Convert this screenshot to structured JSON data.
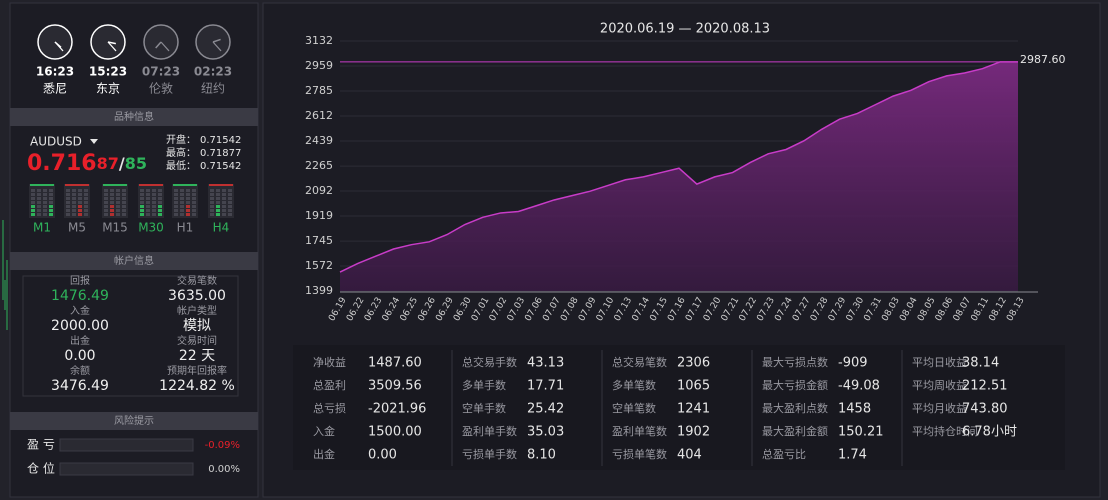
{
  "left": {
    "clocks": [
      {
        "time": "16:23",
        "city": "悉尼",
        "color": "#ffffff"
      },
      {
        "time": "15:23",
        "city": "东京",
        "color": "#ffffff"
      },
      {
        "time": "07:23",
        "city": "伦敦",
        "color": "#8a8a92"
      },
      {
        "time": "02:23",
        "city": "纽约",
        "color": "#8a8a92"
      }
    ],
    "symbol_section": "品种信息",
    "symbol": "AUDUSD",
    "price": {
      "main": "0.716",
      "pips": "87",
      "sep": "/",
      "ask": "85"
    },
    "quotes": [
      {
        "label": "开盘：",
        "value": "0.71542"
      },
      {
        "label": "最高：",
        "value": "0.71877"
      },
      {
        "label": "最低：",
        "value": "0.71542"
      }
    ],
    "timeframes": [
      {
        "label": "M1",
        "color": "#2fb35b"
      },
      {
        "label": "M5",
        "color": "#8a8a92"
      },
      {
        "label": "M15",
        "color": "#8a8a92"
      },
      {
        "label": "M30",
        "color": "#2fb35b"
      },
      {
        "label": "H1",
        "color": "#8a8a92"
      },
      {
        "label": "H4",
        "color": "#2fb35b"
      }
    ],
    "account_section": "帐户信息",
    "account": [
      [
        {
          "label": "回报",
          "value": "1476.49"
        },
        {
          "label": "入金",
          "value": "2000.00"
        },
        {
          "label": "出金",
          "value": "0.00"
        },
        {
          "label": "余额",
          "value": "3476.49"
        }
      ],
      [
        {
          "label": "交易笔数",
          "value": "3635.00"
        },
        {
          "label": "帐户类型",
          "value": "模拟"
        },
        {
          "label": "交易时间",
          "value": "22 天"
        },
        {
          "label": "预期年回报率",
          "value": "1224.82 %"
        }
      ]
    ],
    "risk_section": "风险提示",
    "risk": [
      {
        "label": "盈 亏",
        "value": "-0.09%",
        "color": "#e8202a"
      },
      {
        "label": "仓 位",
        "value": "0.00%",
        "color": "#d0d0d0"
      }
    ]
  },
  "chart_data": {
    "type": "area",
    "title": "2020.06.19 — 2020.08.13",
    "color": "#c83cc8",
    "categories": [
      "06.19",
      "06.22",
      "06.23",
      "06.24",
      "06.25",
      "06.26",
      "06.29",
      "06.30",
      "07.01",
      "07.02",
      "07.03",
      "07.06",
      "07.07",
      "07.08",
      "07.09",
      "07.10",
      "07.13",
      "07.14",
      "07.15",
      "07.16",
      "07.17",
      "07.20",
      "07.21",
      "07.22",
      "07.23",
      "07.24",
      "07.27",
      "07.28",
      "07.29",
      "07.30",
      "07.31",
      "08.03",
      "08.04",
      "08.05",
      "08.06",
      "08.07",
      "08.11",
      "08.12",
      "08.13"
    ],
    "values": [
      1530,
      1590,
      1640,
      1690,
      1720,
      1740,
      1790,
      1860,
      1910,
      1940,
      1950,
      1990,
      2030,
      2060,
      2090,
      2130,
      2170,
      2190,
      2220,
      2250,
      2140,
      2190,
      2220,
      2290,
      2350,
      2380,
      2440,
      2520,
      2590,
      2630,
      2690,
      2750,
      2790,
      2850,
      2890,
      2910,
      2940,
      2987.6,
      2987.6
    ],
    "ylim": [
      1399,
      3132
    ],
    "yticks": [
      1399,
      1572,
      1745,
      1919,
      2092,
      2265,
      2439,
      2612,
      2785,
      2959,
      3132
    ],
    "grid": true,
    "annotation": {
      "text": "2987.60",
      "value": 2987.6
    }
  },
  "stats": [
    [
      {
        "label": "净收益",
        "value": "1487.60"
      },
      {
        "label": "总盈利",
        "value": "3509.56"
      },
      {
        "label": "总亏损",
        "value": "-2021.96"
      },
      {
        "label": "入金",
        "value": "1500.00"
      },
      {
        "label": "出金",
        "value": "0.00"
      }
    ],
    [
      {
        "label": "总交易手数",
        "value": "43.13"
      },
      {
        "label": "多单手数",
        "value": "17.71"
      },
      {
        "label": "空单手数",
        "value": "25.42"
      },
      {
        "label": "盈利单手数",
        "value": "35.03"
      },
      {
        "label": "亏损单手数",
        "value": "8.10"
      }
    ],
    [
      {
        "label": "总交易笔数",
        "value": "2306"
      },
      {
        "label": "多单笔数",
        "value": "1065"
      },
      {
        "label": "空单笔数",
        "value": "1241"
      },
      {
        "label": "盈利单笔数",
        "value": "1902"
      },
      {
        "label": "亏损单笔数",
        "value": "404"
      }
    ],
    [
      {
        "label": "最大亏损点数",
        "value": "-909"
      },
      {
        "label": "最大亏损金额",
        "value": "-49.08"
      },
      {
        "label": "最大盈利点数",
        "value": "1458"
      },
      {
        "label": "最大盈利金额",
        "value": "150.21"
      },
      {
        "label": "总盈亏比",
        "value": "1.74"
      }
    ],
    [
      {
        "label": "平均日收益",
        "value": "38.14"
      },
      {
        "label": "平均周收益",
        "value": "212.51"
      },
      {
        "label": "平均月收益",
        "value": "743.80"
      },
      {
        "label": "平均持仓时间",
        "value": "6.78小时"
      }
    ]
  ]
}
